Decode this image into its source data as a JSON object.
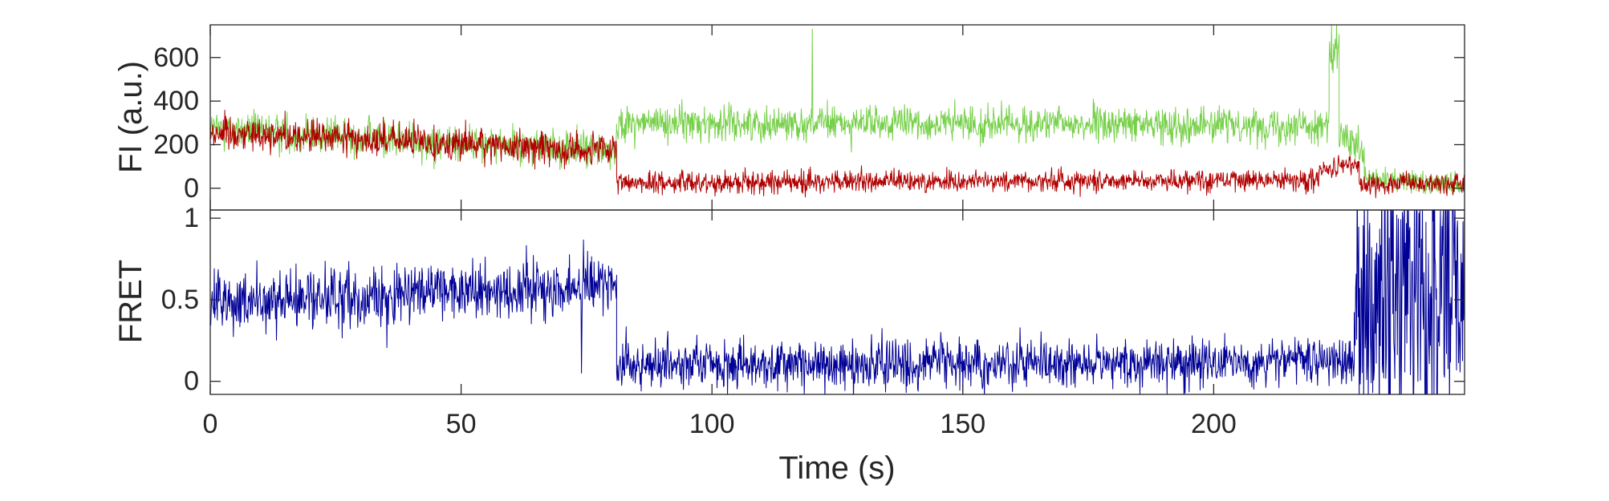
{
  "chart_data": [
    {
      "type": "line",
      "panel": "top",
      "ylabel": "FI (a.u.)",
      "xlim": [
        0,
        250
      ],
      "ylim": [
        -100,
        750
      ],
      "yticks": [
        0,
        200,
        400,
        600
      ],
      "ytick_labels": [
        "0",
        "200",
        "400",
        "600"
      ],
      "xticks": [
        0,
        50,
        100,
        150,
        200
      ],
      "series": [
        {
          "color": "#77d04a",
          "segments": [
            {
              "x_start": 0,
              "x_end": 81,
              "mean_start": 270,
              "mean_end": 170,
              "noise": 60
            },
            {
              "x_start": 81,
              "x_end": 223,
              "mean_start": 300,
              "mean_end": 290,
              "noise": 55
            },
            {
              "x_start": 223,
              "x_end": 225,
              "mean_start": 600,
              "mean_end": 600,
              "noise": 80
            },
            {
              "x_start": 225,
              "x_end": 230,
              "mean_start": 250,
              "mean_end": 150,
              "noise": 60
            },
            {
              "x_start": 230,
              "x_end": 250,
              "mean_start": 40,
              "mean_end": 20,
              "noise": 40
            }
          ],
          "spikes": [
            [
              120,
              730
            ],
            [
              223.5,
              750
            ],
            [
              224.5,
              760
            ]
          ]
        },
        {
          "color": "#b00000",
          "segments": [
            {
              "x_start": 0,
              "x_end": 81,
              "mean_start": 260,
              "mean_end": 170,
              "noise": 55
            },
            {
              "x_start": 81,
              "x_end": 221,
              "mean_start": 25,
              "mean_end": 40,
              "noise": 35
            },
            {
              "x_start": 221,
              "x_end": 229,
              "mean_start": 80,
              "mean_end": 110,
              "noise": 30
            },
            {
              "x_start": 229,
              "x_end": 250,
              "mean_start": 20,
              "mean_end": 20,
              "noise": 35
            }
          ],
          "spikes": []
        }
      ]
    },
    {
      "type": "line",
      "panel": "bottom",
      "ylabel": "FRET",
      "xlabel": "Time (s)",
      "xlim": [
        0,
        250
      ],
      "ylim": [
        -0.08,
        1.05
      ],
      "yticks": [
        0,
        0.5,
        1
      ],
      "ytick_labels": [
        "0",
        "0.5",
        "1"
      ],
      "xticks": [
        0,
        50,
        100,
        150,
        200
      ],
      "xtick_labels": [
        "0",
        "50",
        "100",
        "150",
        "200"
      ],
      "series": [
        {
          "color": "#000096",
          "segments": [
            {
              "x_start": 0,
              "x_end": 81,
              "mean_start": 0.47,
              "mean_end": 0.6,
              "noise": 0.13
            },
            {
              "x_start": 81,
              "x_end": 228,
              "mean_start": 0.1,
              "mean_end": 0.12,
              "noise": 0.1
            },
            {
              "x_start": 228,
              "x_end": 250,
              "mean_start": 0.5,
              "mean_end": 0.5,
              "noise": 0.6
            }
          ],
          "spikes": [
            [
              74,
              0.05
            ]
          ]
        }
      ]
    }
  ]
}
